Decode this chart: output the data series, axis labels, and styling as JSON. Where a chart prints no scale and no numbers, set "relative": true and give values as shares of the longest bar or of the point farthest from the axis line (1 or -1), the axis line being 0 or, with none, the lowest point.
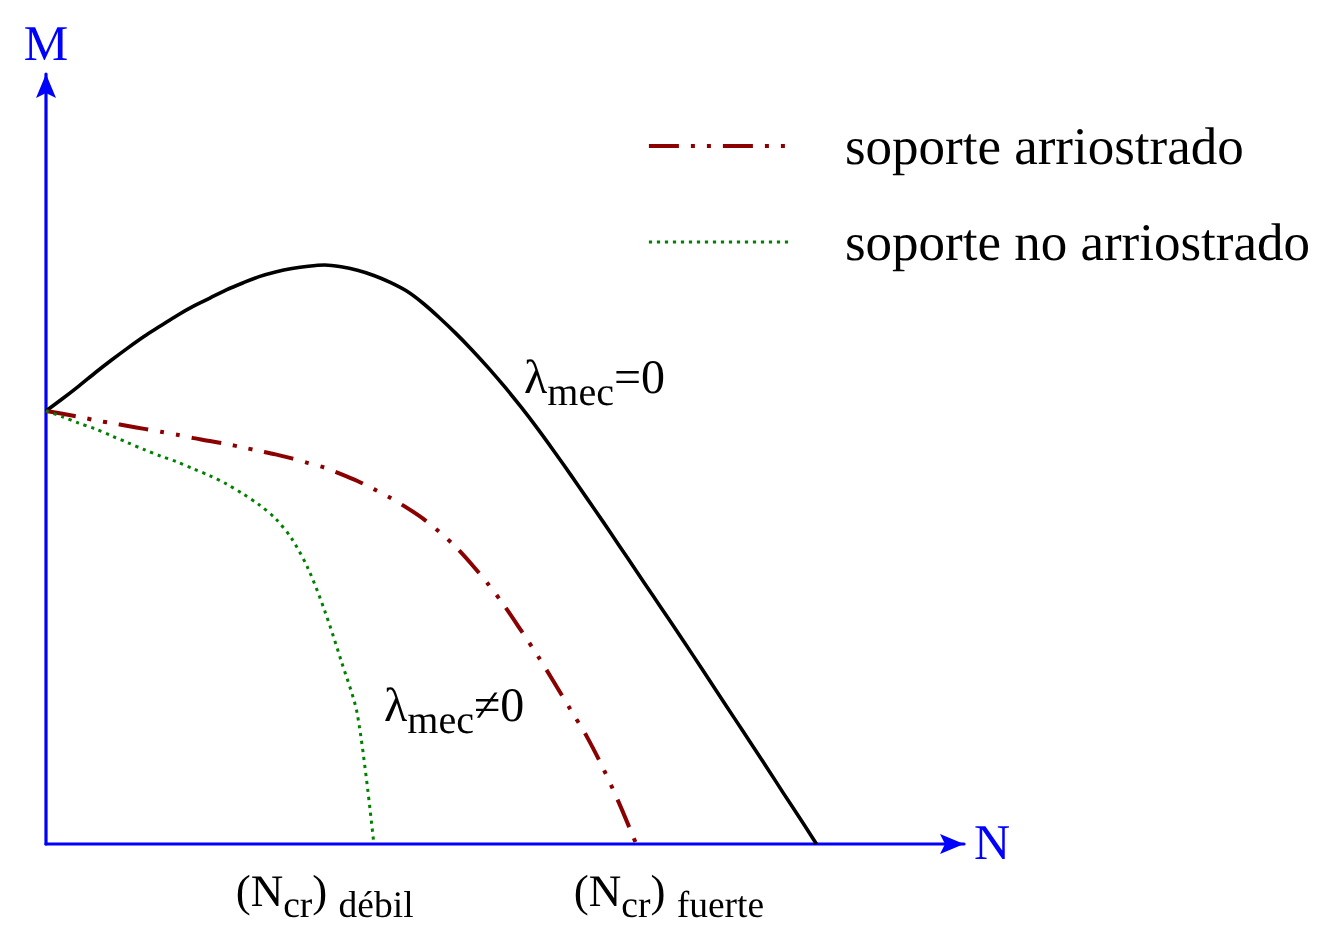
{
  "chart_data": {
    "type": "line",
    "xlabel": "N",
    "ylabel": "M",
    "relative": true,
    "categories": [
      null,
      null,
      null,
      null,
      null,
      null,
      null,
      null,
      null,
      null,
      null,
      null,
      null,
      null,
      null,
      null,
      null,
      "(N$_{cr}$) $_{débil}$",
      null,
      null,
      null,
      null,
      null,
      null,
      null,
      null,
      null,
      null,
      null,
      null,
      null,
      null,
      null,
      null,
      null,
      null,
      null,
      null,
      "(N$_{cr}$) $_{fuerte}$",
      null,
      null,
      null,
      null,
      null,
      null,
      null,
      null,
      null,
      null,
      null,
      null,
      null,
      null,
      null,
      null,
      null,
      null
    ],
    "series": [
      {
        "color": "#000000",
        "line_style": "solid",
        "values": [
          0.748,
          0.769,
          0.791,
          0.814,
          0.836,
          0.857,
          0.877,
          0.895,
          0.913,
          0.929,
          0.943,
          0.957,
          0.969,
          0.98,
          0.988,
          0.994,
          0.998,
          1,
          0.997,
          0.991,
          0.982,
          0.97,
          0.955,
          0.934,
          0.909,
          0.882,
          0.853,
          0.822,
          0.789,
          0.754,
          0.717,
          0.678,
          0.638,
          0.597,
          0.556,
          0.514,
          0.472,
          0.43,
          0.388,
          0.346,
          0.303,
          0.26,
          0.217,
          0.174,
          0.131,
          0.087,
          0.044,
          0,
          null,
          null,
          null,
          null,
          null,
          null,
          null,
          null,
          null
        ]
      },
      {
        "name": "soporte arriostrado",
        "color": "#8b0000",
        "line_style": "dashed",
        "values": [
          0.748,
          0.743,
          0.738,
          0.732,
          0.727,
          0.722,
          0.717,
          0.712,
          0.707,
          0.701,
          0.696,
          0.691,
          0.685,
          0.679,
          0.673,
          0.666,
          0.658,
          0.65,
          0.639,
          0.627,
          0.613,
          0.598,
          0.581,
          0.562,
          0.539,
          0.513,
          0.482,
          0.448,
          0.41,
          0.368,
          0.325,
          0.279,
          0.232,
          0.185,
          0.13,
          0.068,
          0,
          null,
          null,
          null,
          null,
          null,
          null,
          null,
          null,
          null,
          null,
          null,
          null,
          null,
          null,
          null,
          null,
          null,
          null,
          null,
          null
        ]
      },
      {
        "name": "soporte no arriostrado",
        "color": "#008000",
        "line_style": "dotted",
        "values": [
          0.748,
          0.738,
          0.727,
          0.717,
          0.705,
          0.693,
          0.681,
          0.67,
          0.66,
          0.648,
          0.636,
          0.622,
          0.605,
          0.586,
          0.562,
          0.527,
          0.475,
          0.403,
          0.317,
          0.223,
          0,
          null,
          null,
          null,
          null,
          null,
          null,
          null,
          null,
          null,
          null,
          null,
          null,
          null,
          null,
          null,
          null,
          null,
          null,
          null,
          null,
          null,
          null,
          null,
          null,
          null,
          null,
          null,
          null,
          null,
          null,
          null,
          null,
          null,
          null,
          null,
          null
        ]
      }
    ],
    "annotations": [
      "λ$_{mec}$=0",
      "λ$_{mec}$≠0"
    ],
    "grid": false,
    "legend": "top right"
  }
}
